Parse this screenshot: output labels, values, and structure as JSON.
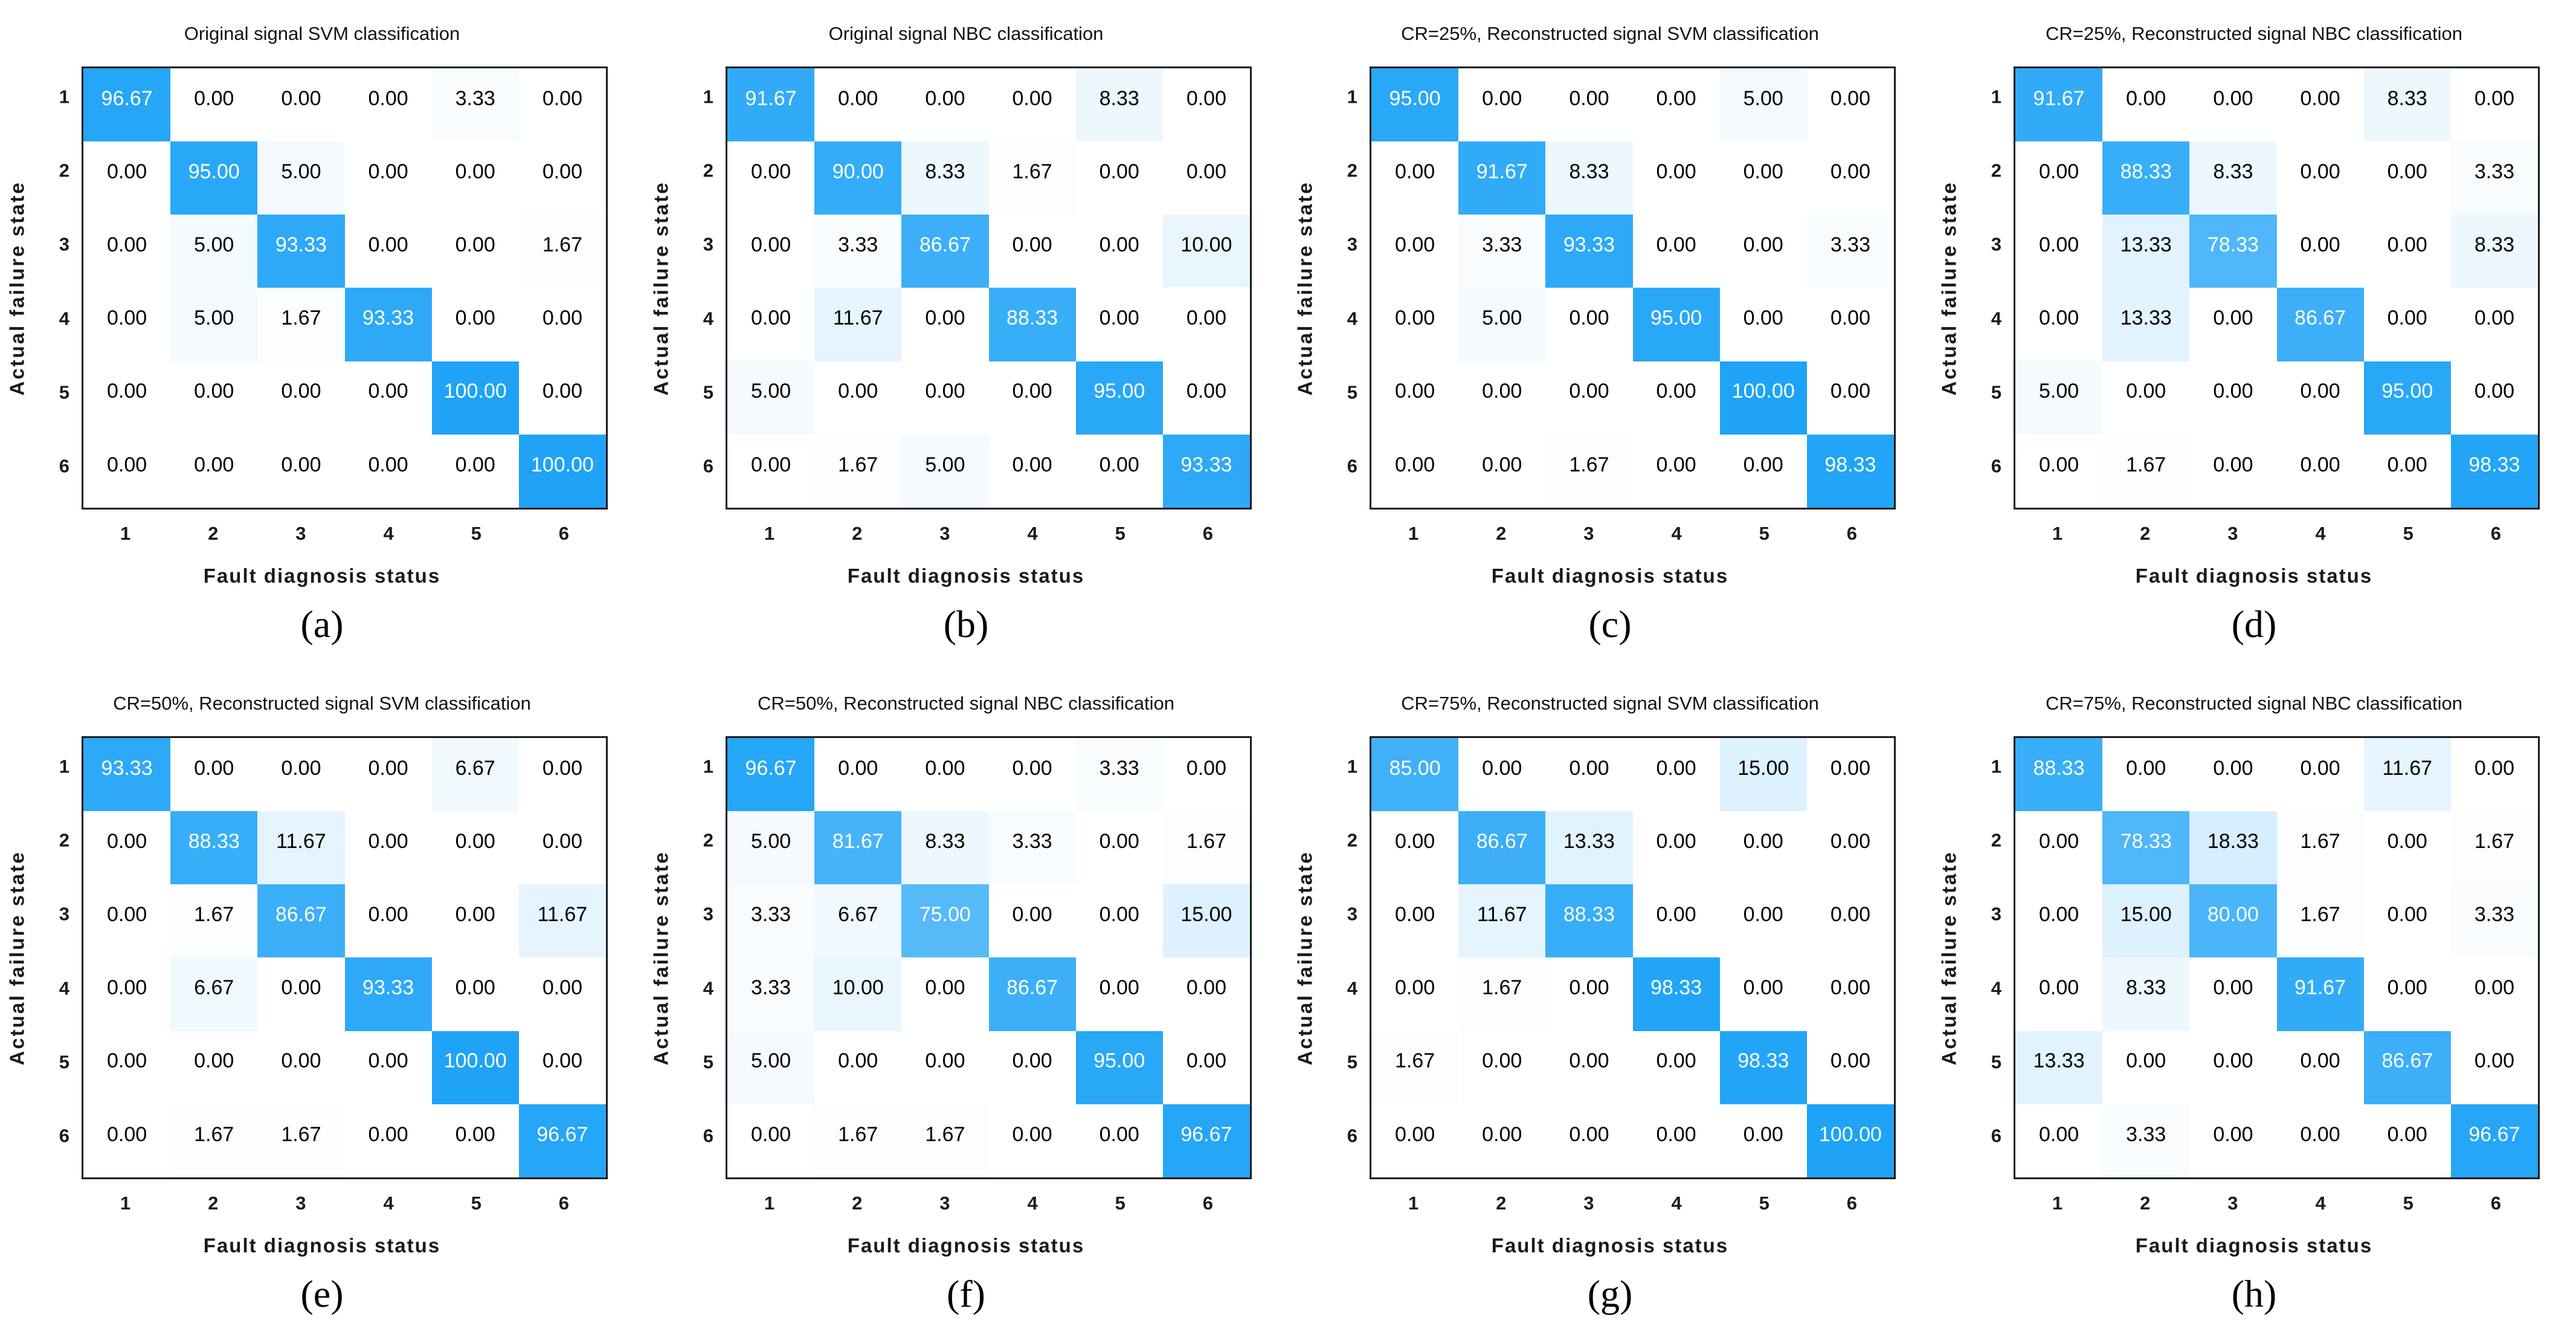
{
  "figure": {
    "background": "#ffffff",
    "accent_color": "#1EA3F7",
    "colormap": {
      "low": "#FFFFFF",
      "high": "#1EA3F7"
    },
    "text_white_threshold": 50,
    "border_color": "#1a1a1a",
    "xlabel": "Fault diagnosis status",
    "ylabel": "Actual failure state",
    "x_ticks": [
      "1",
      "2",
      "3",
      "4",
      "5",
      "6"
    ],
    "y_ticks": [
      "1",
      "2",
      "3",
      "4",
      "5",
      "6"
    ],
    "layout": {
      "rows": 2,
      "cols": 4,
      "grid": false,
      "legend": "none"
    },
    "value_format": "fixed-2"
  },
  "chart_data": [
    {
      "type": "heatmap",
      "caption": "(a)",
      "title": "Original signal SVM classification",
      "xlabel": "Fault diagnosis status",
      "ylabel": "Actual failure state",
      "x": [
        "1",
        "2",
        "3",
        "4",
        "5",
        "6"
      ],
      "y": [
        "1",
        "2",
        "3",
        "4",
        "5",
        "6"
      ],
      "values": [
        [
          96.67,
          0.0,
          0.0,
          0.0,
          3.33,
          0.0
        ],
        [
          0.0,
          95.0,
          5.0,
          0.0,
          0.0,
          0.0
        ],
        [
          0.0,
          5.0,
          93.33,
          0.0,
          0.0,
          1.67
        ],
        [
          0.0,
          5.0,
          1.67,
          93.33,
          0.0,
          0.0
        ],
        [
          0.0,
          0.0,
          0.0,
          0.0,
          100.0,
          0.0
        ],
        [
          0.0,
          0.0,
          0.0,
          0.0,
          0.0,
          100.0
        ]
      ]
    },
    {
      "type": "heatmap",
      "caption": "(b)",
      "title": "Original signal NBC classification",
      "xlabel": "Fault diagnosis status",
      "ylabel": "Actual failure state",
      "x": [
        "1",
        "2",
        "3",
        "4",
        "5",
        "6"
      ],
      "y": [
        "1",
        "2",
        "3",
        "4",
        "5",
        "6"
      ],
      "values": [
        [
          91.67,
          0.0,
          0.0,
          0.0,
          8.33,
          0.0
        ],
        [
          0.0,
          90.0,
          8.33,
          1.67,
          0.0,
          0.0
        ],
        [
          0.0,
          3.33,
          86.67,
          0.0,
          0.0,
          10.0
        ],
        [
          0.0,
          11.67,
          0.0,
          88.33,
          0.0,
          0.0
        ],
        [
          5.0,
          0.0,
          0.0,
          0.0,
          95.0,
          0.0
        ],
        [
          0.0,
          1.67,
          5.0,
          0.0,
          0.0,
          93.33
        ]
      ]
    },
    {
      "type": "heatmap",
      "caption": "(c)",
      "title": "CR=25%, Reconstructed signal SVM classification",
      "xlabel": "Fault diagnosis status",
      "ylabel": "Actual failure state",
      "x": [
        "1",
        "2",
        "3",
        "4",
        "5",
        "6"
      ],
      "y": [
        "1",
        "2",
        "3",
        "4",
        "5",
        "6"
      ],
      "values": [
        [
          95.0,
          0.0,
          0.0,
          0.0,
          5.0,
          0.0
        ],
        [
          0.0,
          91.67,
          8.33,
          0.0,
          0.0,
          0.0
        ],
        [
          0.0,
          3.33,
          93.33,
          0.0,
          0.0,
          3.33
        ],
        [
          0.0,
          5.0,
          0.0,
          95.0,
          0.0,
          0.0
        ],
        [
          0.0,
          0.0,
          0.0,
          0.0,
          100.0,
          0.0
        ],
        [
          0.0,
          0.0,
          1.67,
          0.0,
          0.0,
          98.33
        ]
      ]
    },
    {
      "type": "heatmap",
      "caption": "(d)",
      "title": "CR=25%, Reconstructed signal NBC classification",
      "xlabel": "Fault diagnosis status",
      "ylabel": "Actual failure state",
      "x": [
        "1",
        "2",
        "3",
        "4",
        "5",
        "6"
      ],
      "y": [
        "1",
        "2",
        "3",
        "4",
        "5",
        "6"
      ],
      "values": [
        [
          91.67,
          0.0,
          0.0,
          0.0,
          8.33,
          0.0
        ],
        [
          0.0,
          88.33,
          8.33,
          0.0,
          0.0,
          3.33
        ],
        [
          0.0,
          13.33,
          78.33,
          0.0,
          0.0,
          8.33
        ],
        [
          0.0,
          13.33,
          0.0,
          86.67,
          0.0,
          0.0
        ],
        [
          5.0,
          0.0,
          0.0,
          0.0,
          95.0,
          0.0
        ],
        [
          0.0,
          1.67,
          0.0,
          0.0,
          0.0,
          98.33
        ]
      ]
    },
    {
      "type": "heatmap",
      "caption": "(e)",
      "title": "CR=50%, Reconstructed signal SVM classification",
      "xlabel": "Fault diagnosis status",
      "ylabel": "Actual failure state",
      "x": [
        "1",
        "2",
        "3",
        "4",
        "5",
        "6"
      ],
      "y": [
        "1",
        "2",
        "3",
        "4",
        "5",
        "6"
      ],
      "values": [
        [
          93.33,
          0.0,
          0.0,
          0.0,
          6.67,
          0.0
        ],
        [
          0.0,
          88.33,
          11.67,
          0.0,
          0.0,
          0.0
        ],
        [
          0.0,
          1.67,
          86.67,
          0.0,
          0.0,
          11.67
        ],
        [
          0.0,
          6.67,
          0.0,
          93.33,
          0.0,
          0.0
        ],
        [
          0.0,
          0.0,
          0.0,
          0.0,
          100.0,
          0.0
        ],
        [
          0.0,
          1.67,
          1.67,
          0.0,
          0.0,
          96.67
        ]
      ]
    },
    {
      "type": "heatmap",
      "caption": "(f)",
      "title": "CR=50%, Reconstructed signal NBC classification",
      "xlabel": "Fault diagnosis status",
      "ylabel": "Actual failure state",
      "x": [
        "1",
        "2",
        "3",
        "4",
        "5",
        "6"
      ],
      "y": [
        "1",
        "2",
        "3",
        "4",
        "5",
        "6"
      ],
      "values": [
        [
          96.67,
          0.0,
          0.0,
          0.0,
          3.33,
          0.0
        ],
        [
          5.0,
          81.67,
          8.33,
          3.33,
          0.0,
          1.67
        ],
        [
          3.33,
          6.67,
          75.0,
          0.0,
          0.0,
          15.0
        ],
        [
          3.33,
          10.0,
          0.0,
          86.67,
          0.0,
          0.0
        ],
        [
          5.0,
          0.0,
          0.0,
          0.0,
          95.0,
          0.0
        ],
        [
          0.0,
          1.67,
          1.67,
          0.0,
          0.0,
          96.67
        ]
      ]
    },
    {
      "type": "heatmap",
      "caption": "(g)",
      "title": "CR=75%, Reconstructed signal SVM classification",
      "xlabel": "Fault diagnosis status",
      "ylabel": "Actual failure state",
      "x": [
        "1",
        "2",
        "3",
        "4",
        "5",
        "6"
      ],
      "y": [
        "1",
        "2",
        "3",
        "4",
        "5",
        "6"
      ],
      "values": [
        [
          85.0,
          0.0,
          0.0,
          0.0,
          15.0,
          0.0
        ],
        [
          0.0,
          86.67,
          13.33,
          0.0,
          0.0,
          0.0
        ],
        [
          0.0,
          11.67,
          88.33,
          0.0,
          0.0,
          0.0
        ],
        [
          0.0,
          1.67,
          0.0,
          98.33,
          0.0,
          0.0
        ],
        [
          1.67,
          0.0,
          0.0,
          0.0,
          98.33,
          0.0
        ],
        [
          0.0,
          0.0,
          0.0,
          0.0,
          0.0,
          100.0
        ]
      ]
    },
    {
      "type": "heatmap",
      "caption": "(h)",
      "title": "CR=75%, Reconstructed signal NBC classification",
      "xlabel": "Fault diagnosis status",
      "ylabel": "Actual failure state",
      "x": [
        "1",
        "2",
        "3",
        "4",
        "5",
        "6"
      ],
      "y": [
        "1",
        "2",
        "3",
        "4",
        "5",
        "6"
      ],
      "values": [
        [
          88.33,
          0.0,
          0.0,
          0.0,
          11.67,
          0.0
        ],
        [
          0.0,
          78.33,
          18.33,
          1.67,
          0.0,
          1.67
        ],
        [
          0.0,
          15.0,
          80.0,
          1.67,
          0.0,
          3.33
        ],
        [
          0.0,
          8.33,
          0.0,
          91.67,
          0.0,
          0.0
        ],
        [
          13.33,
          0.0,
          0.0,
          0.0,
          86.67,
          0.0
        ],
        [
          0.0,
          3.33,
          0.0,
          0.0,
          0.0,
          96.67
        ]
      ]
    }
  ]
}
